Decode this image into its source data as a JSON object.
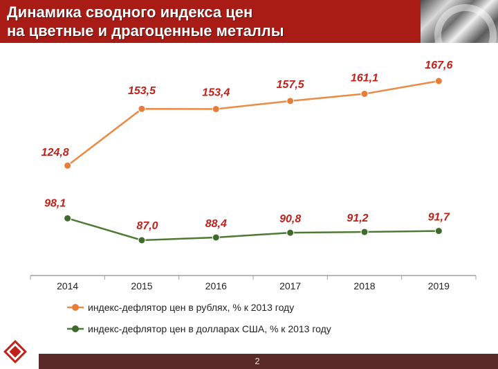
{
  "header": {
    "title_line1": "Динамика сводного индекса цен",
    "title_line2": "на цветные и драгоценные металлы",
    "bg_color": "#a81c15"
  },
  "footer": {
    "page_number": "2"
  },
  "chart_data": {
    "type": "line",
    "categories": [
      "2014",
      "2015",
      "2016",
      "2017",
      "2018",
      "2019"
    ],
    "series": [
      {
        "name": "индекс-дефлятор цен в рублях, % к 2013 году",
        "values": [
          124.8,
          153.5,
          153.4,
          157.5,
          161.1,
          167.6
        ],
        "labels": [
          "124,8",
          "153,5",
          "153,4",
          "157,5",
          "161,1",
          "167,6"
        ],
        "color": "#ec8a44",
        "marker_color": "#e87d3a"
      },
      {
        "name": "индекс-дефлятор цен в долларах США, % к 2013 году",
        "values": [
          98.1,
          87.0,
          88.4,
          90.8,
          91.2,
          91.7
        ],
        "labels": [
          "98,1",
          "87,0",
          "88,4",
          "90,8",
          "91,2",
          "91,7"
        ],
        "color": "#4f7a36",
        "marker_color": "#3f6a2a"
      }
    ],
    "grid": false,
    "legend_position": "bottom",
    "axis_color": "#a0a0a0",
    "label_color": "#c0201a"
  }
}
